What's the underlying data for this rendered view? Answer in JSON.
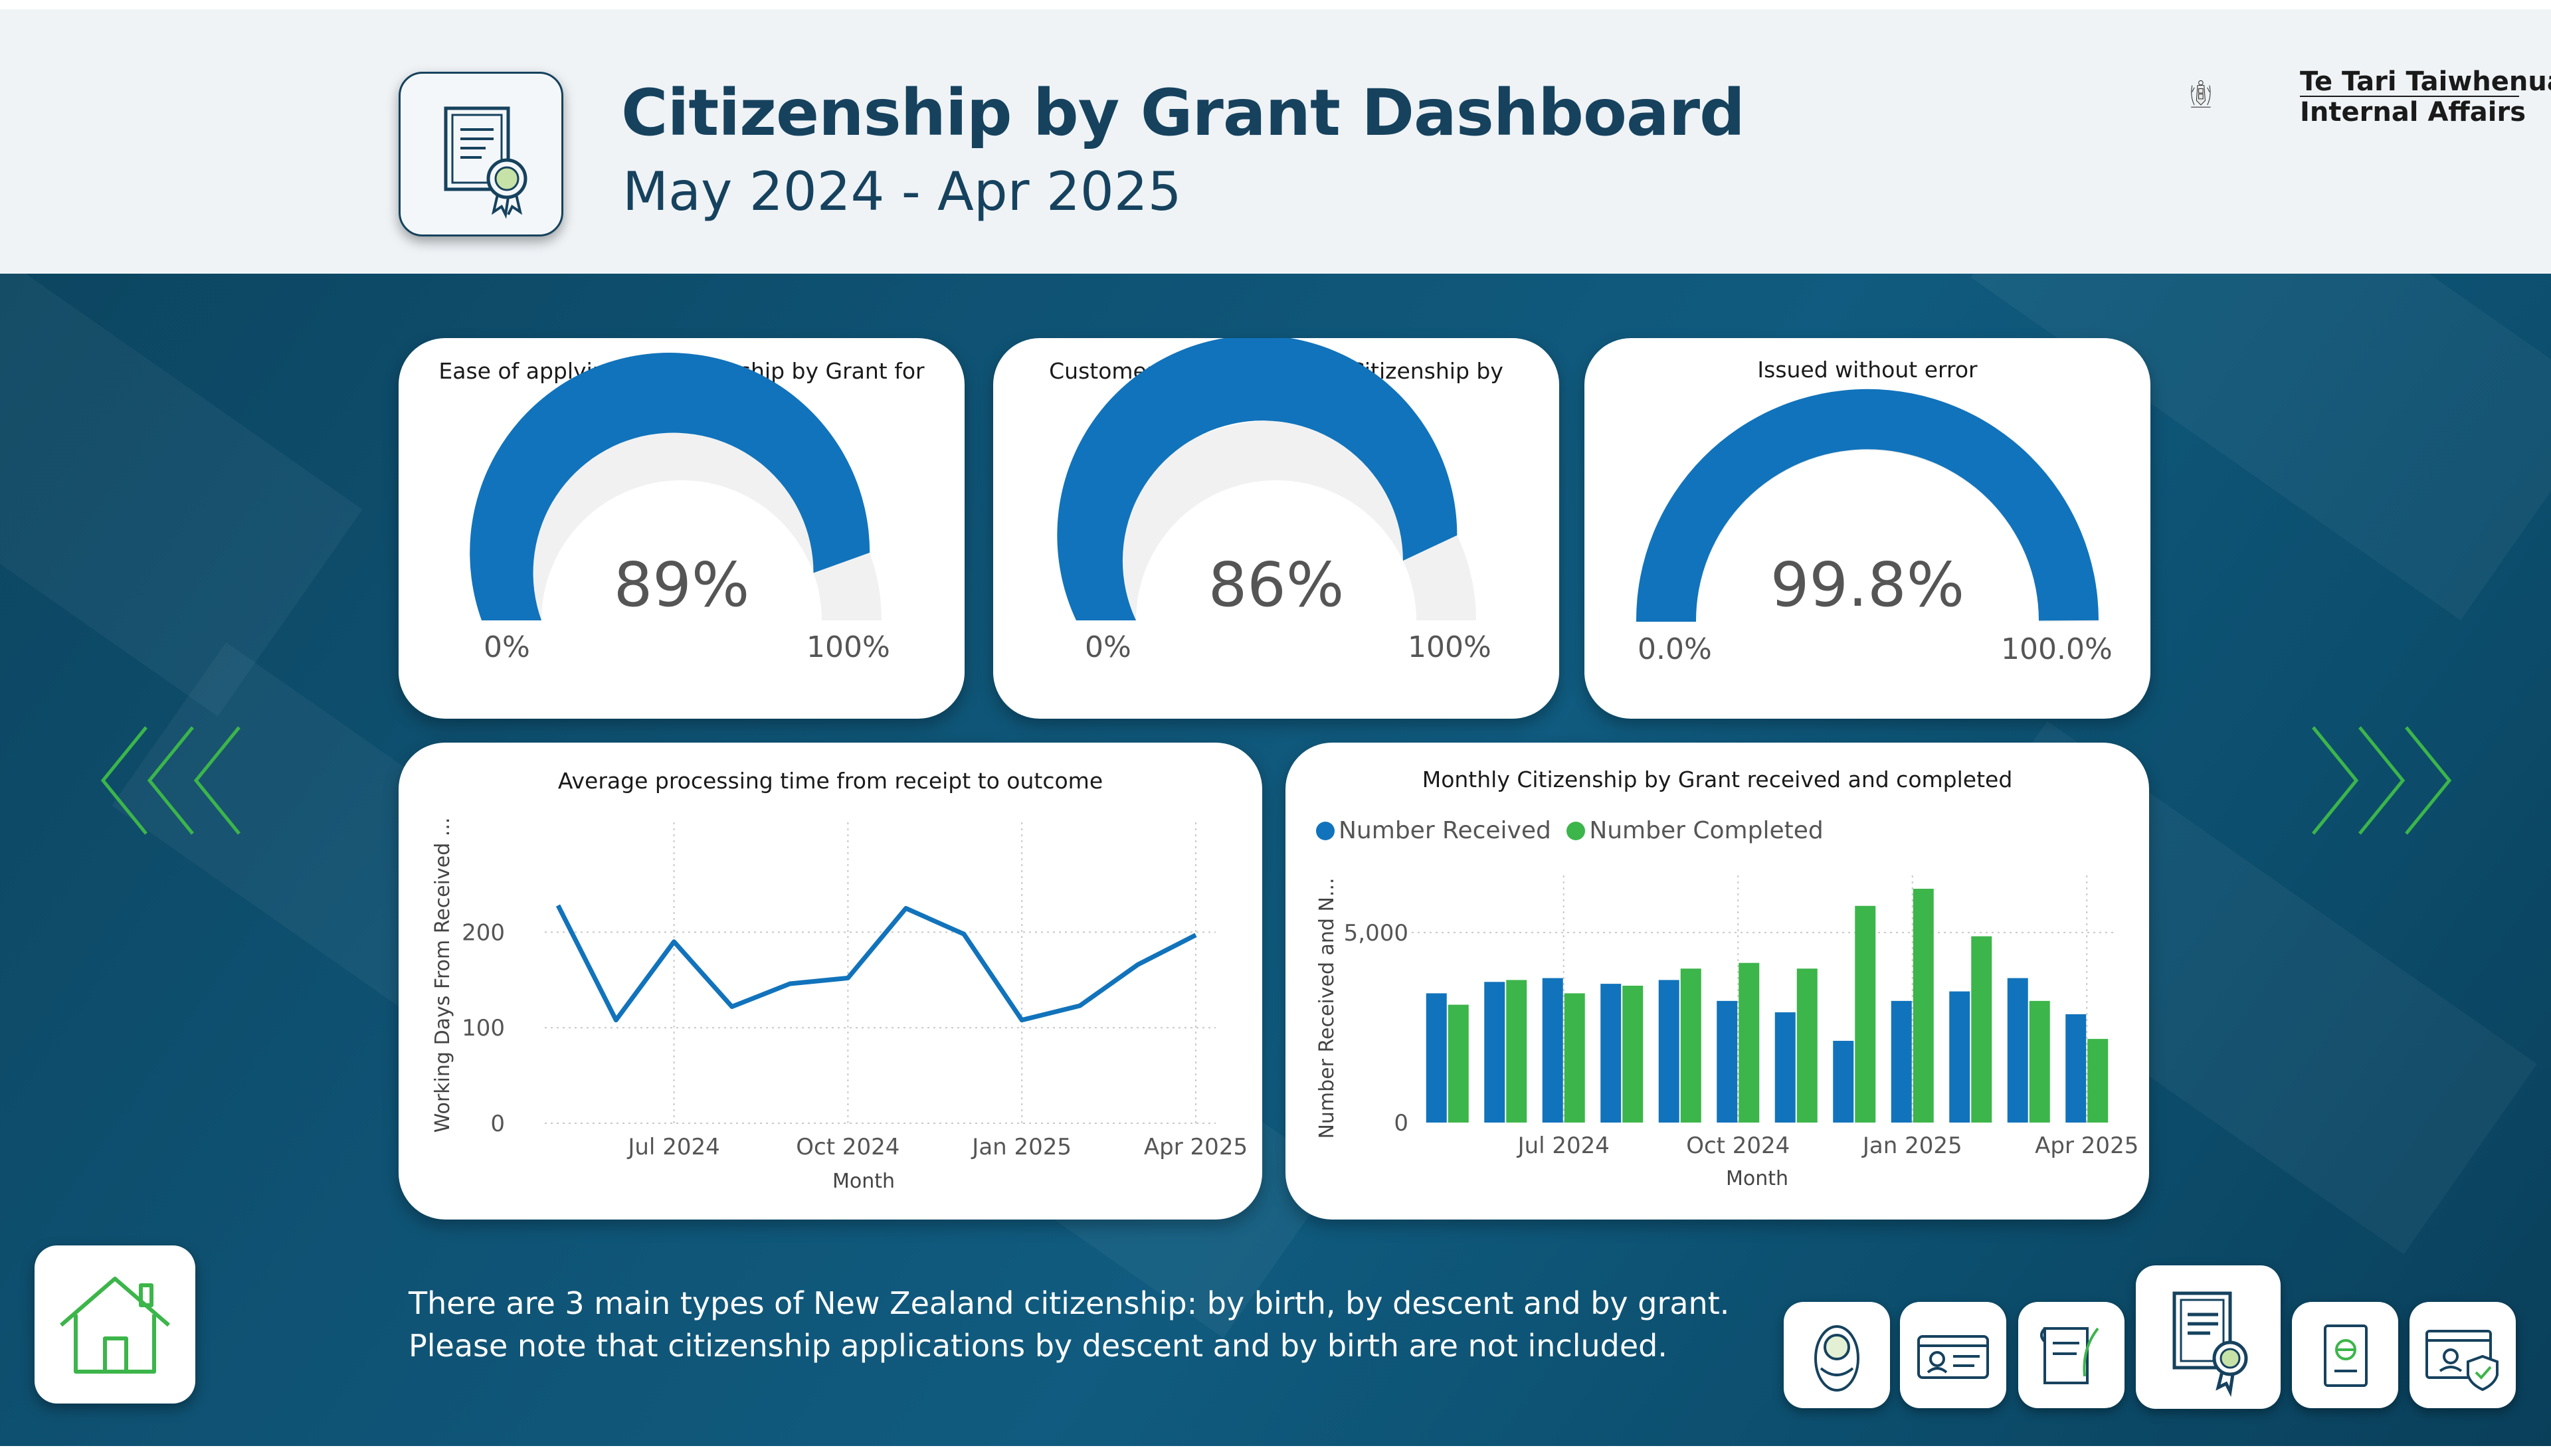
{
  "header": {
    "title": "Citizenship by Grant Dashboard",
    "subtitle": "May 2024 - Apr 2025",
    "org_line1": "Te Tari Taiwhenua",
    "org_line2": "Internal Affairs"
  },
  "gauges": [
    {
      "title": "Ease of applying for Citizenship by Grant for customers",
      "value_text": "89%",
      "value": 0.89,
      "min": "0%",
      "max": "100%"
    },
    {
      "title": "Customer satisfaction with Citizenship by Grant service",
      "value_text": "86%",
      "value": 0.86,
      "min": "0%",
      "max": "100%"
    },
    {
      "title": "Issued without error",
      "value_text": "99.8%",
      "value": 0.998,
      "min": "0.0%",
      "max": "100.0%"
    }
  ],
  "colors": {
    "blue": "#1173bb",
    "green": "#3cb54a",
    "gauge_track": "#f1f1f1",
    "header_text": "#16425e",
    "arrows": "#3cb54a"
  },
  "chart_data": [
    {
      "type": "line",
      "title": "Average processing time from receipt to outcome",
      "xlabel": "Month",
      "ylabel": "Working Days From Received ...",
      "x": [
        "2024-05",
        "2024-06",
        "2024-07",
        "2024-08",
        "2024-09",
        "2024-10",
        "2024-11",
        "2024-12",
        "2025-01",
        "2025-02",
        "2025-03",
        "2025-04"
      ],
      "x_tick_labels": [
        "Jul 2024",
        "Oct 2024",
        "Jan 2025",
        "Apr 2025"
      ],
      "y_ticks": [
        "0",
        "100",
        "200"
      ],
      "series": [
        {
          "values": [
            228,
            108,
            190,
            122,
            146,
            152,
            225,
            198,
            108,
            123,
            166,
            197
          ]
        }
      ],
      "ylim": [
        0,
        250
      ],
      "grid": true
    },
    {
      "type": "bar",
      "title": "Monthly Citizenship by Grant received and completed",
      "xlabel": "Month",
      "ylabel": "Number Received and N...",
      "categories": [
        "2024-05",
        "2024-06",
        "2024-07",
        "2024-08",
        "2024-09",
        "2024-10",
        "2024-11",
        "2024-12",
        "2025-01",
        "2025-02",
        "2025-03",
        "2025-04"
      ],
      "x_tick_labels": [
        "Jul 2024",
        "Oct 2024",
        "Jan 2025",
        "Apr 2025"
      ],
      "y_ticks": [
        "0",
        "5,000"
      ],
      "series": [
        {
          "name": "Number Received",
          "values": [
            3400,
            3700,
            3800,
            3650,
            3750,
            3200,
            2900,
            2150,
            3200,
            3450,
            3800,
            2850
          ]
        },
        {
          "name": "Number Completed",
          "values": [
            3100,
            3750,
            3400,
            3600,
            4050,
            4200,
            4050,
            5700,
            6150,
            4900,
            3200,
            2200
          ]
        }
      ],
      "ylim": [
        0,
        6500
      ],
      "legend": "top-left",
      "grid": true
    }
  ],
  "footnote": "There are 3 main types of New Zealand citizenship: by birth, by descent and by grant. Please note that citizenship applications by descent and by birth are not included.",
  "nav": {
    "icons": [
      "baby-icon",
      "id-card-icon",
      "scroll-quill-icon",
      "certificate-icon",
      "passport-icon",
      "online-identity-icon"
    ],
    "home": "home-icon"
  }
}
